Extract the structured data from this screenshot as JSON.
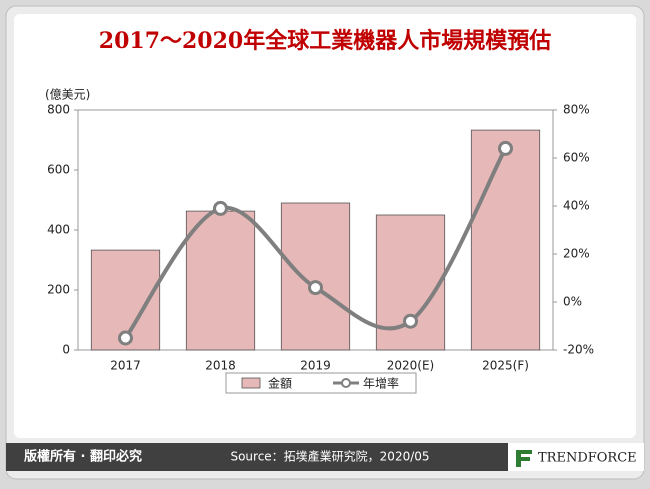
{
  "chart_data": {
    "type": "bar",
    "title": "2017～2020年全球工業機器人市場規模預估",
    "y_axis_label": "(億美元)",
    "categories": [
      "2017",
      "2018",
      "2019",
      "2020(E)",
      "2025(F)"
    ],
    "series": [
      {
        "name": "金額",
        "type": "bar",
        "color": "#e6b8b7",
        "values": [
          333,
          463,
          490,
          450,
          733
        ]
      },
      {
        "name": "年增率",
        "type": "line",
        "axis": "y2",
        "color": "#7f7f7f",
        "values": [
          -15,
          39,
          6,
          -8,
          64
        ]
      }
    ],
    "ylim": [
      0,
      800
    ],
    "yticks": [
      0,
      200,
      400,
      600,
      800
    ],
    "y2lim": [
      -20,
      80
    ],
    "y2ticks": [
      {
        "value": -20,
        "label": "-20%"
      },
      {
        "value": 0,
        "label": "0%"
      },
      {
        "value": 20,
        "label": "20%"
      },
      {
        "value": 40,
        "label": "40%"
      },
      {
        "value": 60,
        "label": "60%"
      },
      {
        "value": 80,
        "label": "80%"
      }
    ],
    "legend": "bottom"
  },
  "footer": {
    "copyright": "版權所有 · 翻印必究",
    "source": "Source：拓墣產業研究院，2020/05",
    "logo": "TRENDFORCE"
  }
}
